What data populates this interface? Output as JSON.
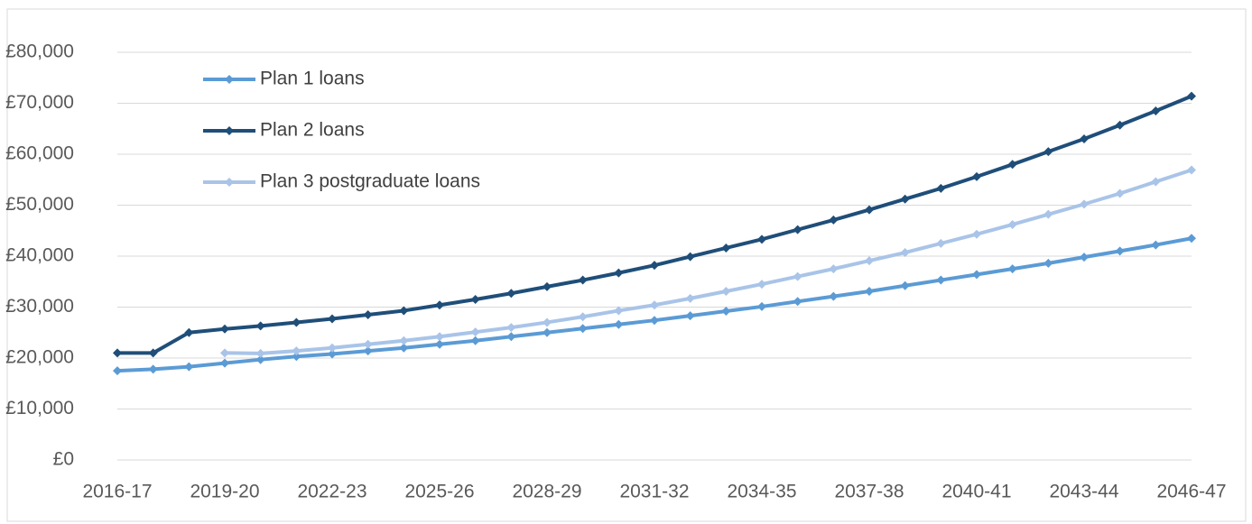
{
  "chart_data": {
    "type": "line",
    "categories": [
      "2016-17",
      null,
      null,
      "2019-20",
      null,
      null,
      "2022-23",
      null,
      null,
      "2025-26",
      null,
      null,
      "2028-29",
      null,
      null,
      "2031-32",
      null,
      null,
      "2034-35",
      null,
      null,
      "2037-38",
      null,
      null,
      "2040-41",
      null,
      null,
      "2043-44",
      null,
      null,
      "2046-47"
    ],
    "series": [
      {
        "name": "Plan 1 loans",
        "color": "#5b9bd5",
        "values": [
          17500,
          17800,
          18300,
          19000,
          19700,
          20300,
          20800,
          21400,
          22000,
          22700,
          23400,
          24200,
          25000,
          25800,
          26600,
          27400,
          28300,
          29200,
          30100,
          31100,
          32100,
          33100,
          34200,
          35300,
          36400,
          37500,
          38600,
          39800,
          41000,
          42200,
          43500
        ]
      },
      {
        "name": "Plan 2 loans",
        "color": "#1f4e79",
        "values": [
          21000,
          21000,
          25000,
          25700,
          26300,
          27000,
          27700,
          28500,
          29300,
          30400,
          31500,
          32700,
          34000,
          35300,
          36700,
          38200,
          39900,
          41600,
          43300,
          45200,
          47100,
          49100,
          51200,
          53300,
          55600,
          58000,
          60500,
          63000,
          65700,
          68500,
          71400
        ]
      },
      {
        "name": "Plan 3 postgraduate loans",
        "color": "#a9c4e8",
        "values": [
          null,
          null,
          null,
          21000,
          20900,
          21400,
          22000,
          22700,
          23400,
          24200,
          25100,
          26000,
          27000,
          28100,
          29300,
          30400,
          31700,
          33100,
          34500,
          36000,
          37500,
          39100,
          40700,
          42500,
          44300,
          46200,
          48200,
          50200,
          52300,
          54600,
          56900
        ]
      }
    ],
    "ylim": [
      0,
      80000
    ],
    "yticks": [
      {
        "value": 0,
        "label": "£0"
      },
      {
        "value": 10000,
        "label": "£10,000"
      },
      {
        "value": 20000,
        "label": "£20,000"
      },
      {
        "value": 30000,
        "label": "£30,000"
      },
      {
        "value": 40000,
        "label": "£40,000"
      },
      {
        "value": 50000,
        "label": "£50,000"
      },
      {
        "value": 60000,
        "label": "£60,000"
      },
      {
        "value": 70000,
        "label": "£70,000"
      },
      {
        "value": 80000,
        "label": "£80,000"
      }
    ],
    "grid": true,
    "legend": "top-left"
  }
}
